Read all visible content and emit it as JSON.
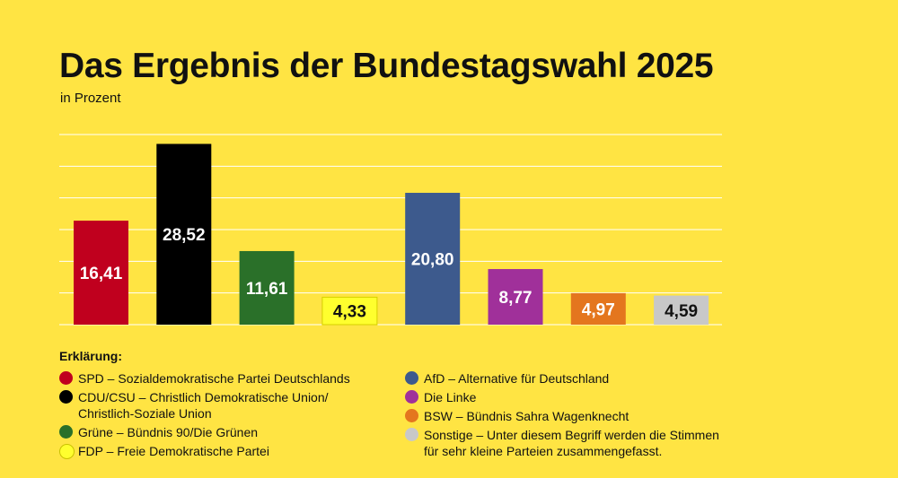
{
  "header": {
    "title": "Das Ergebnis der Bundestagswahl 2025",
    "subtitle": "in Prozent"
  },
  "chart_data": {
    "type": "bar",
    "title": "Das Ergebnis der Bundestagswahl 2025",
    "subtitle": "in Prozent",
    "xlabel": "",
    "ylabel": "",
    "ylim": [
      0,
      30
    ],
    "grid": true,
    "legend_position": "bottom",
    "categories": [
      "SPD",
      "CDU/CSU",
      "Grüne",
      "FDP",
      "AfD",
      "Die Linke",
      "BSW",
      "Sonstige"
    ],
    "values": [
      16.41,
      28.52,
      11.61,
      4.33,
      20.8,
      8.77,
      4.97,
      4.59
    ],
    "value_labels": [
      "16,41",
      "28,52",
      "11,61",
      "4,33",
      "20,80",
      "8,77",
      "4,97",
      "4,59"
    ],
    "colors": [
      "#c0001e",
      "#000000",
      "#2a7029",
      "#ffff2e",
      "#3d5a8d",
      "#a0309a",
      "#e4761e",
      "#c8c8c8"
    ],
    "label_colors": [
      "#ffffff",
      "#ffffff",
      "#ffffff",
      "#111111",
      "#ffffff",
      "#ffffff",
      "#ffffff",
      "#111111"
    ]
  },
  "legend": {
    "title": "Erklärung:",
    "left": [
      {
        "text": "SPD – Sozialdemokratische Partei Deutschlands",
        "color": "#c0001e"
      },
      {
        "text": "CDU/CSU – Christlich Demokratische Union/\n                   Christlich-Soziale Union",
        "color": "#000000"
      },
      {
        "text": "Grüne – Bündnis 90/Die Grünen",
        "color": "#2a7029"
      },
      {
        "text": "FDP – Freie Demokratische Partei",
        "color": "#ffff2e"
      }
    ],
    "right": [
      {
        "text": "AfD – Alternative für Deutschland",
        "color": "#3d5a8d"
      },
      {
        "text": "Die Linke",
        "color": "#a0309a"
      },
      {
        "text": "BSW – Bündnis Sahra Wagenknecht",
        "color": "#e4761e"
      },
      {
        "text": "Sonstige – Unter diesem Begriff werden die Stimmen\nfür sehr kleine Parteien zusammengefasst.",
        "color": "#c8c8c8"
      }
    ]
  }
}
